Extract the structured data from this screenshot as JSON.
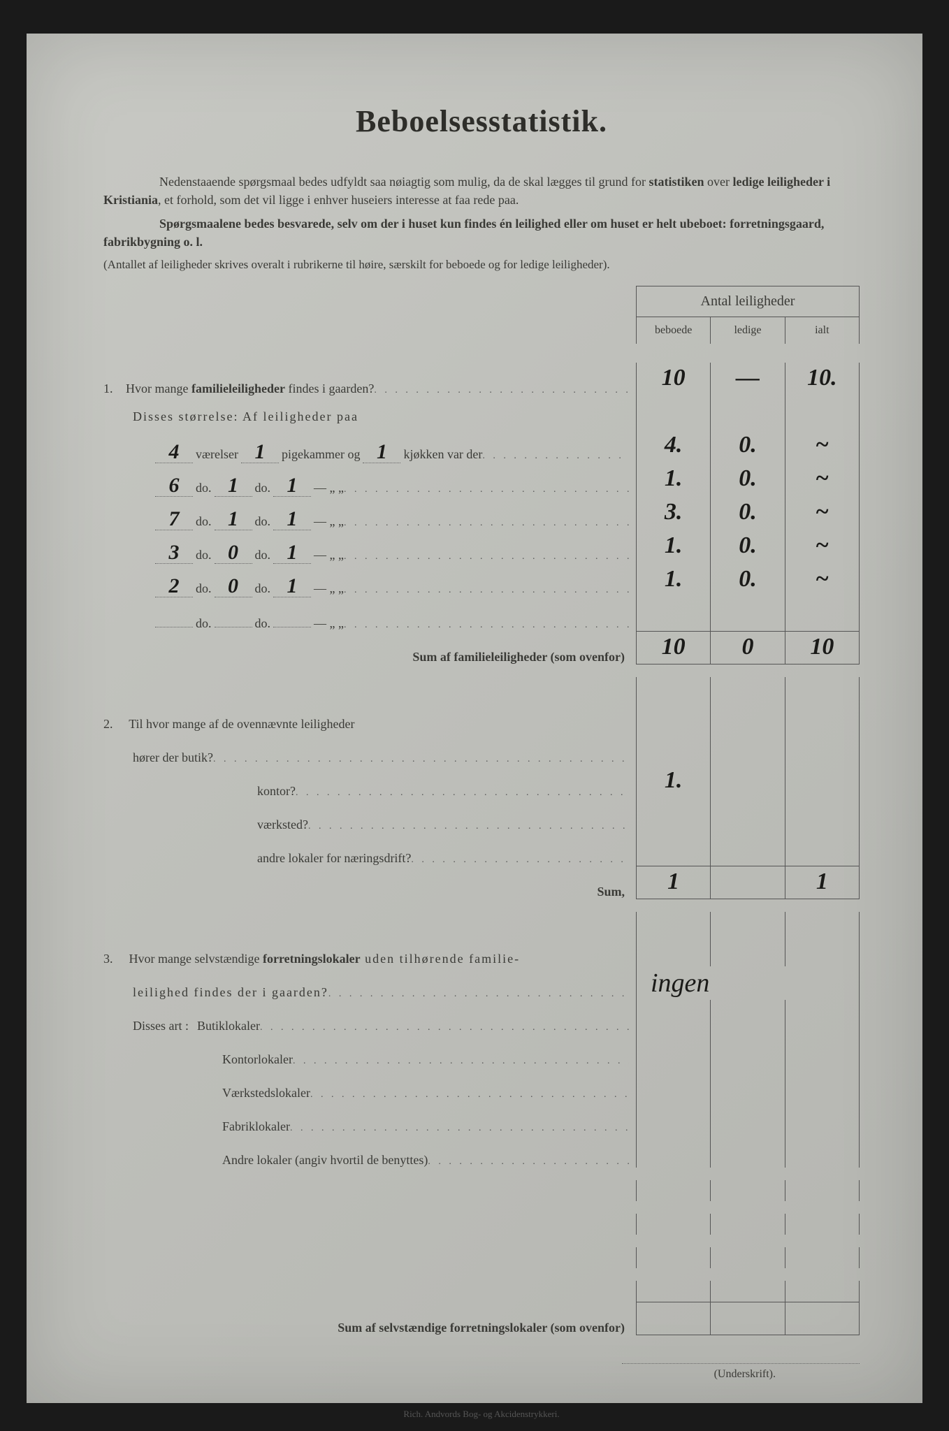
{
  "title": "Beboelsesstatistik.",
  "intro1_a": "Nedenstaaende spørgsmaal bedes udfyldt saa nøiagtig som mulig, da de skal lægges til grund for ",
  "intro1_b": "statistiken",
  "intro1_c": " over ",
  "intro1_d": "ledige leiligheder i Kristiania",
  "intro1_e": ", et forhold, som det vil ligge i enhver huseiers interesse at faa rede paa.",
  "intro2_a": "Spørgsmaalene bedes besvarede, selv om der i huset kun findes én leilighed eller om huset er helt ubeboet: forretningsgaard, fabrikbygning o. l.",
  "intro3": "(Antallet af leiligheder skrives overalt i rubrikerne til høire, særskilt for beboede og for ledige leiligheder).",
  "head_top": "Antal leiligheder",
  "head_c1": "beboede",
  "head_c2": "ledige",
  "head_c3": "ialt",
  "q1_num": "1.",
  "q1_text": "Hvor mange familieleiligheder findes i gaarden?",
  "q1_b": "10",
  "q1_l": "—",
  "q1_i": "10.",
  "q1_sub": "Disses størrelse:  Af leiligheder paa",
  "size_rows": [
    {
      "v": "4",
      "p": "1",
      "k": "1",
      "suf": "kjøkken var der",
      "b": "4.",
      "l": "0.",
      "i": "~"
    },
    {
      "v": "6",
      "p": "1",
      "k": "1",
      "suf": "—        „    „",
      "b": "1.",
      "l": "0.",
      "i": "~"
    },
    {
      "v": "7",
      "p": "1",
      "k": "1",
      "suf": "—        „    „",
      "b": "3.",
      "l": "0.",
      "i": "~"
    },
    {
      "v": "3",
      "p": "0",
      "k": "1",
      "suf": "—        „    „",
      "b": "1.",
      "l": "0.",
      "i": "~"
    },
    {
      "v": "2",
      "p": "0",
      "k": "1",
      "suf": "—        „    „",
      "b": "1.",
      "l": "0.",
      "i": "~"
    },
    {
      "v": "",
      "p": "",
      "k": "",
      "suf": "—        „    „",
      "b": "",
      "l": "",
      "i": ""
    }
  ],
  "lbl_vaer": "værelser",
  "lbl_pig": "pigekammer og",
  "lbl_do": "do.",
  "lbl_do2": "do",
  "sum1_label": "Sum af familieleiligheder (som ovenfor)",
  "sum1": {
    "b": "10",
    "l": "0",
    "i": "10"
  },
  "q2_num": "2.",
  "q2_text": "Til hvor mange af de ovennævnte leiligheder",
  "q2_lines": [
    {
      "t": "hører der butik?",
      "b": "",
      "l": "",
      "i": ""
    },
    {
      "t": "kontor?",
      "b": "1.",
      "l": "",
      "i": ""
    },
    {
      "t": "værksted?",
      "b": "",
      "l": "",
      "i": ""
    },
    {
      "t": "andre lokaler for næringsdrift?",
      "b": "",
      "l": "",
      "i": ""
    }
  ],
  "sum2_label": "Sum,",
  "sum2": {
    "b": "1",
    "l": "",
    "i": "1"
  },
  "q3_num": "3.",
  "q3_text_a": "Hvor mange selvstændige ",
  "q3_text_b": "forretningslokaler",
  "q3_text_c": " uden tilhørende familie-",
  "q3_text2": "leilighed findes der i gaarden?",
  "q3_answer": "ingen",
  "q3_sub": "Disses art :",
  "q3_lines": [
    {
      "t": "Butiklokaler"
    },
    {
      "t": "Kontorlokaler"
    },
    {
      "t": "Værkstedslokaler"
    },
    {
      "t": "Fabriklokaler"
    },
    {
      "t": "Andre lokaler (angiv hvortil de benyttes)"
    }
  ],
  "sum3_label": "Sum af selvstændige forretningslokaler (som ovenfor)",
  "underskrift": "(Underskrift).",
  "footer": "Rich. Andvords Bog- og Akcidenstrykkeri."
}
